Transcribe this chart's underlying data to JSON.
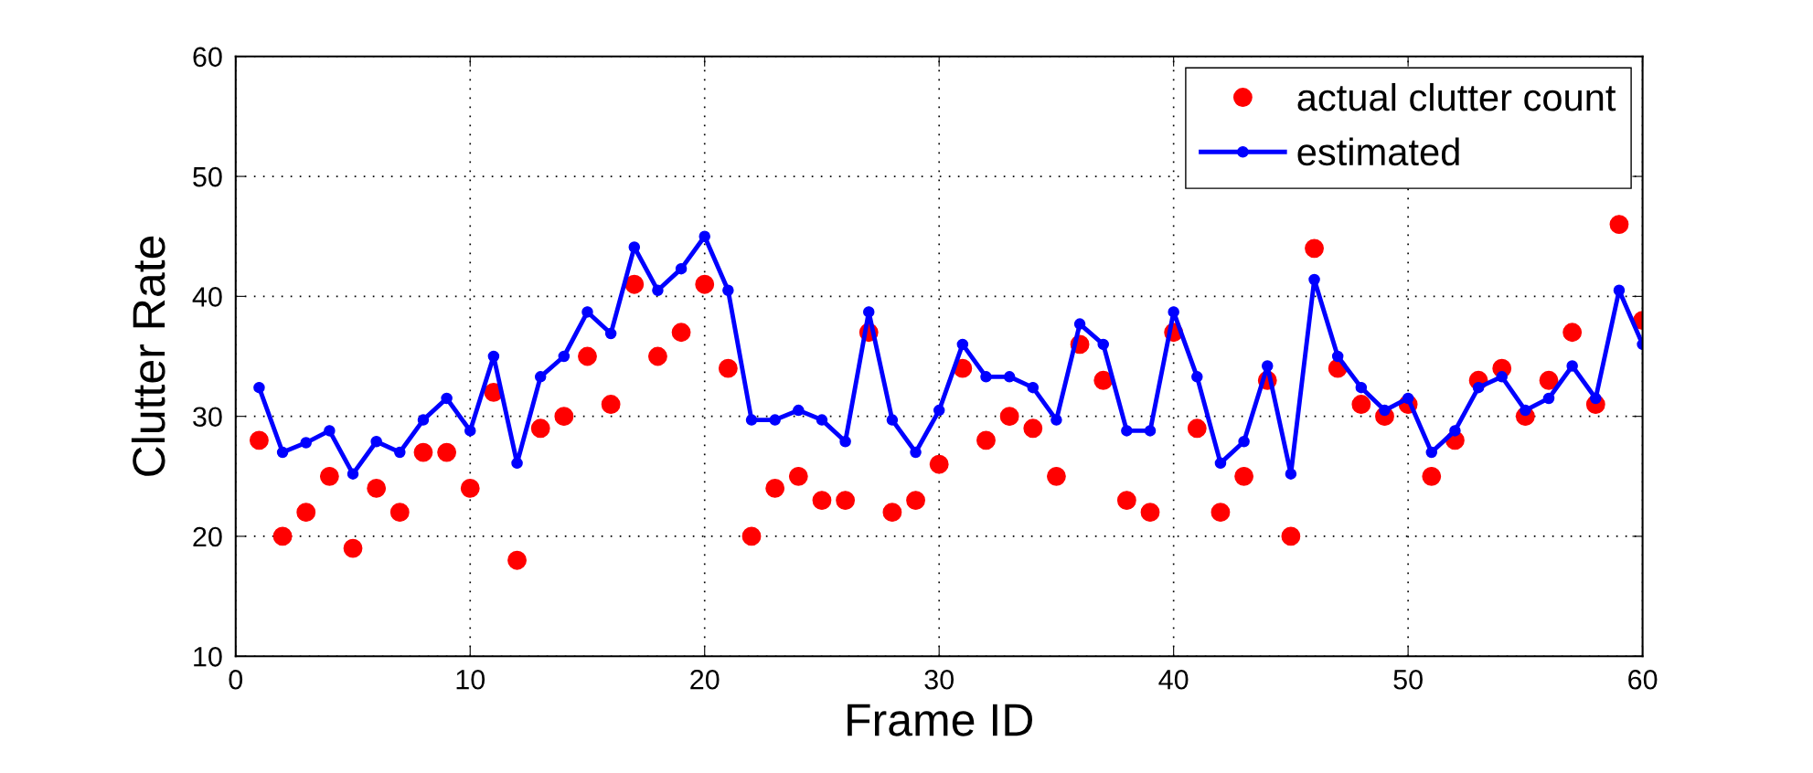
{
  "chart_data": {
    "type": "line",
    "xlabel": "Frame ID",
    "ylabel": "Clutter Rate",
    "x": [
      1,
      2,
      3,
      4,
      5,
      6,
      7,
      8,
      9,
      10,
      11,
      12,
      13,
      14,
      15,
      16,
      17,
      18,
      19,
      20,
      21,
      22,
      23,
      24,
      25,
      26,
      27,
      28,
      29,
      30,
      31,
      32,
      33,
      34,
      35,
      36,
      37,
      38,
      39,
      40,
      41,
      42,
      43,
      44,
      45,
      46,
      47,
      48,
      49,
      50,
      51,
      52,
      53,
      54,
      55,
      56,
      57,
      58,
      59,
      60
    ],
    "series": [
      {
        "name": "actual clutter count",
        "type": "scatter",
        "marker": "circle",
        "color": "#ff0000",
        "values": [
          28,
          20,
          22,
          25,
          19,
          24,
          22,
          27,
          27,
          24,
          32,
          18,
          29,
          30,
          35,
          31,
          41,
          35,
          37,
          41,
          34,
          20,
          24,
          25,
          23,
          23,
          37,
          22,
          23,
          26,
          34,
          28,
          30,
          29,
          25,
          36,
          33,
          23,
          22,
          37,
          29,
          22,
          25,
          33,
          20,
          44,
          34,
          31,
          30,
          31,
          25,
          28,
          33,
          34,
          30,
          33,
          37,
          31,
          46,
          38
        ]
      },
      {
        "name": "estimated",
        "marker": "circle",
        "line_style": "solid",
        "color": "#0000ff",
        "values": [
          32.4,
          27.0,
          27.8,
          28.8,
          25.2,
          27.9,
          27.0,
          29.7,
          31.5,
          28.8,
          35.0,
          26.1,
          33.3,
          35.0,
          38.7,
          36.9,
          44.1,
          40.5,
          42.3,
          45.0,
          40.5,
          29.7,
          29.7,
          30.5,
          29.7,
          27.9,
          38.7,
          29.7,
          27.0,
          30.5,
          36.0,
          33.3,
          33.3,
          32.4,
          29.7,
          37.7,
          36.0,
          28.8,
          28.8,
          38.7,
          33.3,
          26.1,
          27.9,
          34.2,
          25.2,
          41.4,
          35.0,
          32.4,
          30.5,
          31.5,
          27.0,
          28.8,
          32.4,
          33.3,
          30.5,
          31.5,
          34.2,
          31.5,
          40.5,
          36.0
        ]
      }
    ],
    "xlim": [
      0,
      60
    ],
    "xticks": [
      0,
      10,
      20,
      30,
      40,
      50,
      60
    ],
    "ylim": [
      10,
      60
    ],
    "yticks": [
      10,
      20,
      30,
      40,
      50,
      60
    ],
    "grid": true,
    "legend": "top right"
  }
}
